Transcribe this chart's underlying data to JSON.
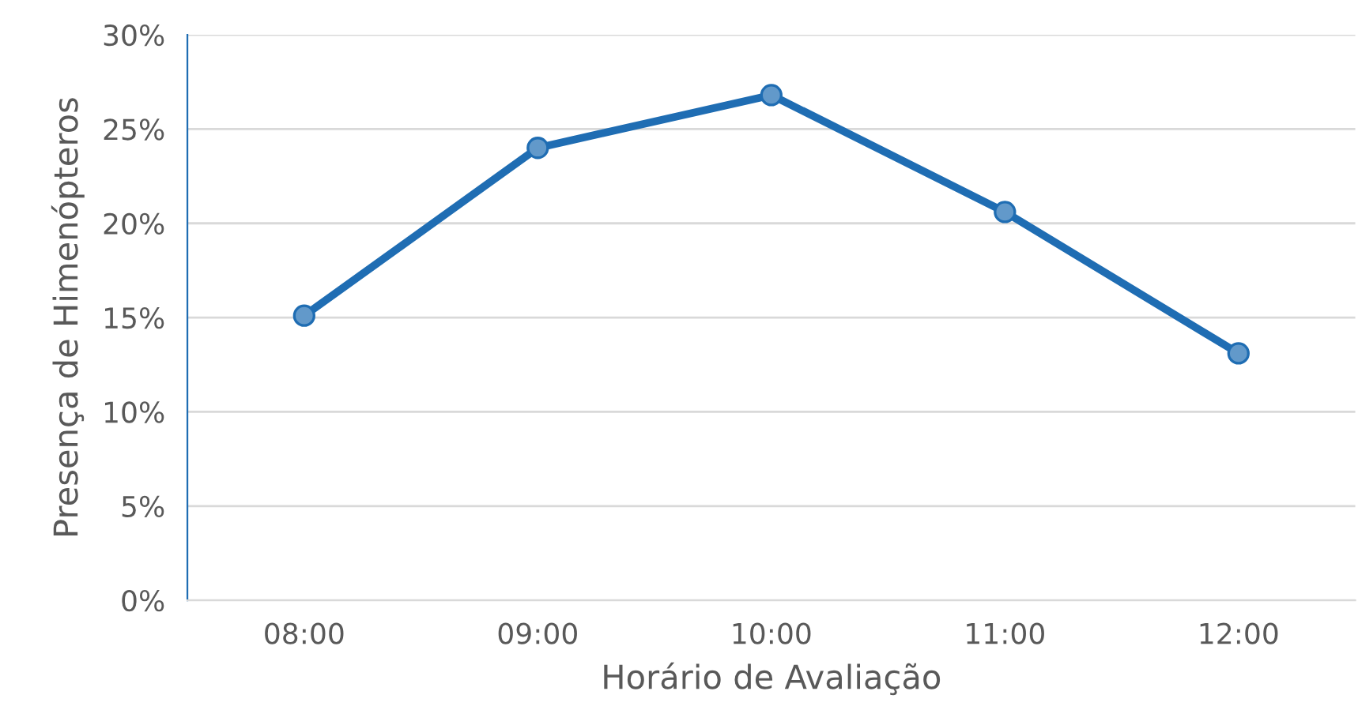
{
  "chart_data": {
    "type": "line",
    "xlabel": "Horário de Avaliação",
    "ylabel": "Presença de Himenópteros",
    "categories": [
      "08:00",
      "09:00",
      "10:00",
      "11:00",
      "12:00"
    ],
    "series": [
      {
        "color": "#1f6db3",
        "values": [
          15.1,
          24.0,
          26.8,
          20.6,
          13.1
        ]
      }
    ],
    "ylim": [
      0,
      30
    ],
    "yticks": [
      {
        "value": 0,
        "label": "0%"
      },
      {
        "value": 5,
        "label": "5%"
      },
      {
        "value": 10,
        "label": "10%"
      },
      {
        "value": 15,
        "label": "15%"
      },
      {
        "value": 20,
        "label": "20%"
      },
      {
        "value": 25,
        "label": "25%"
      },
      {
        "value": 30,
        "label": "30%"
      }
    ],
    "grid": "y",
    "marker": "circle",
    "line_style": "solid"
  }
}
